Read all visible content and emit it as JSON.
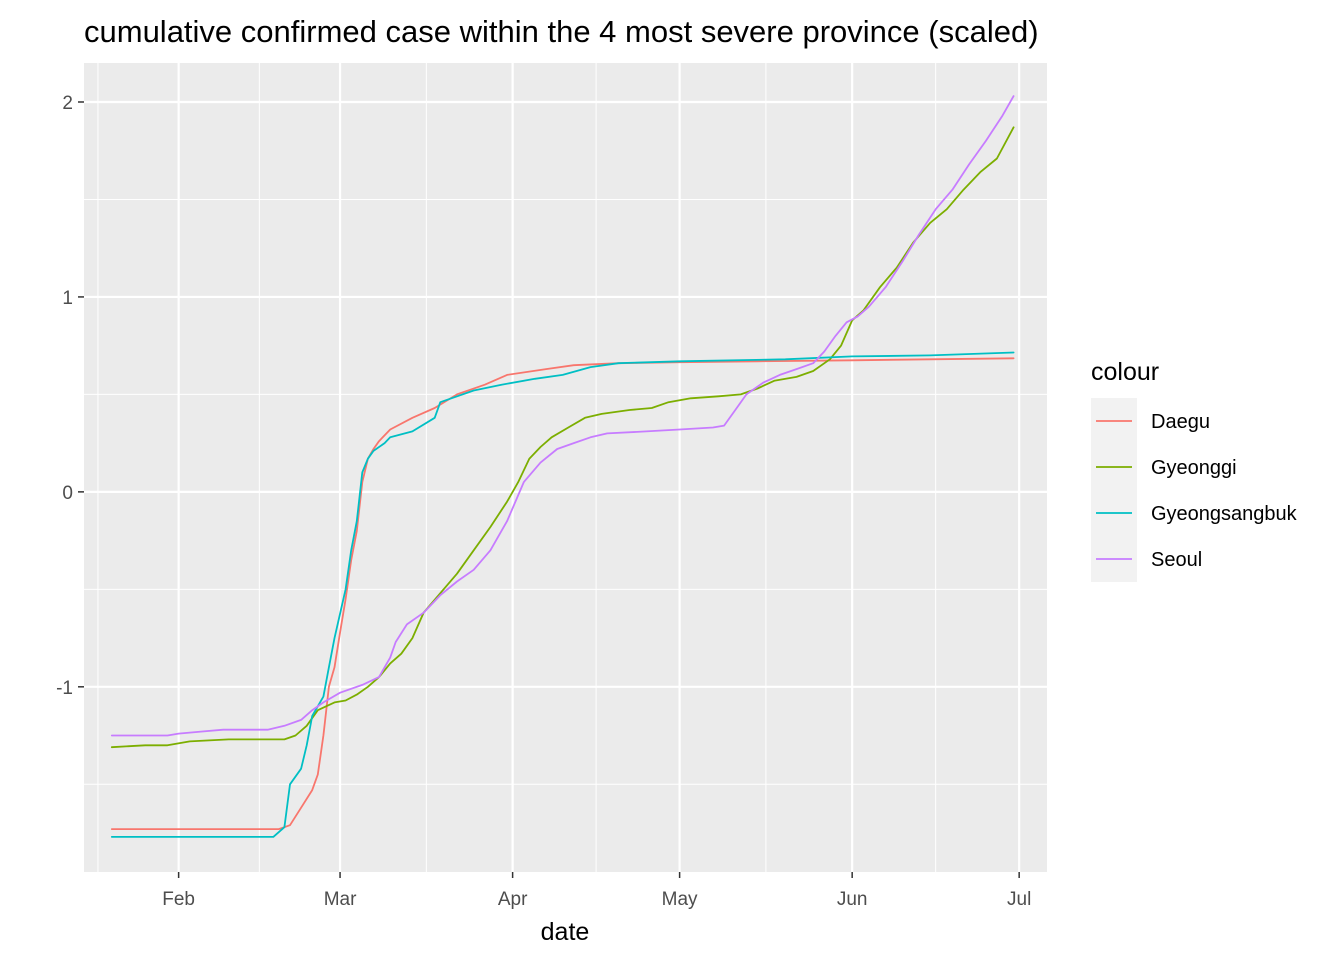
{
  "chart_data": {
    "type": "line",
    "title": "cumulative confirmed case within the 4 most severe province (scaled)",
    "xlabel": "date",
    "ylabel": "",
    "x_type": "date",
    "xlim": [
      "2020-01-15",
      "2020-07-06"
    ],
    "ylim": [
      -1.95,
      2.2
    ],
    "x_ticks": [
      {
        "date": "2020-02-01",
        "label": "Feb"
      },
      {
        "date": "2020-03-01",
        "label": "Mar"
      },
      {
        "date": "2020-04-01",
        "label": "Apr"
      },
      {
        "date": "2020-05-01",
        "label": "May"
      },
      {
        "date": "2020-06-01",
        "label": "Jun"
      },
      {
        "date": "2020-07-01",
        "label": "Jul"
      }
    ],
    "y_ticks": [
      {
        "value": -1,
        "label": "-1"
      },
      {
        "value": 0,
        "label": "0"
      },
      {
        "value": 1,
        "label": "1"
      },
      {
        "value": 2,
        "label": "2"
      }
    ],
    "y_minor": [
      -1.5,
      -0.5,
      0.5,
      1.5
    ],
    "grid": true,
    "legend": {
      "title": "colour",
      "position": "right"
    },
    "series": [
      {
        "name": "Daegu",
        "color": "#F8766D",
        "points": [
          [
            "2020-01-20",
            -1.73
          ],
          [
            "2020-02-19",
            -1.73
          ],
          [
            "2020-02-21",
            -1.71
          ],
          [
            "2020-02-23",
            -1.62
          ],
          [
            "2020-02-25",
            -1.53
          ],
          [
            "2020-02-26",
            -1.45
          ],
          [
            "2020-02-27",
            -1.25
          ],
          [
            "2020-02-28",
            -1.0
          ],
          [
            "2020-02-29",
            -0.9
          ],
          [
            "2020-03-01",
            -0.72
          ],
          [
            "2020-03-02",
            -0.55
          ],
          [
            "2020-03-03",
            -0.35
          ],
          [
            "2020-03-04",
            -0.2
          ],
          [
            "2020-03-05",
            0.05
          ],
          [
            "2020-03-06",
            0.17
          ],
          [
            "2020-03-07",
            0.22
          ],
          [
            "2020-03-08",
            0.26
          ],
          [
            "2020-03-10",
            0.32
          ],
          [
            "2020-03-14",
            0.38
          ],
          [
            "2020-03-18",
            0.43
          ],
          [
            "2020-03-22",
            0.5
          ],
          [
            "2020-03-27",
            0.55
          ],
          [
            "2020-03-31",
            0.6
          ],
          [
            "2020-04-07",
            0.63
          ],
          [
            "2020-04-12",
            0.65
          ],
          [
            "2020-04-20",
            0.66
          ],
          [
            "2020-05-01",
            0.665
          ],
          [
            "2020-05-15",
            0.67
          ],
          [
            "2020-06-01",
            0.675
          ],
          [
            "2020-06-15",
            0.68
          ],
          [
            "2020-06-30",
            0.685
          ]
        ]
      },
      {
        "name": "Gyeonggi",
        "color": "#7CAE00",
        "points": [
          [
            "2020-01-20",
            -1.31
          ],
          [
            "2020-01-26",
            -1.3
          ],
          [
            "2020-01-30",
            -1.3
          ],
          [
            "2020-02-03",
            -1.28
          ],
          [
            "2020-02-10",
            -1.27
          ],
          [
            "2020-02-20",
            -1.27
          ],
          [
            "2020-02-22",
            -1.25
          ],
          [
            "2020-02-24",
            -1.2
          ],
          [
            "2020-02-26",
            -1.12
          ],
          [
            "2020-02-29",
            -1.08
          ],
          [
            "2020-03-02",
            -1.07
          ],
          [
            "2020-03-04",
            -1.04
          ],
          [
            "2020-03-06",
            -1.0
          ],
          [
            "2020-03-08",
            -0.95
          ],
          [
            "2020-03-10",
            -0.88
          ],
          [
            "2020-03-12",
            -0.83
          ],
          [
            "2020-03-14",
            -0.75
          ],
          [
            "2020-03-16",
            -0.62
          ],
          [
            "2020-03-19",
            -0.52
          ],
          [
            "2020-03-22",
            -0.42
          ],
          [
            "2020-03-25",
            -0.3
          ],
          [
            "2020-03-28",
            -0.18
          ],
          [
            "2020-03-31",
            -0.05
          ],
          [
            "2020-04-02",
            0.05
          ],
          [
            "2020-04-04",
            0.17
          ],
          [
            "2020-04-06",
            0.23
          ],
          [
            "2020-04-08",
            0.28
          ],
          [
            "2020-04-11",
            0.33
          ],
          [
            "2020-04-14",
            0.38
          ],
          [
            "2020-04-17",
            0.4
          ],
          [
            "2020-04-22",
            0.42
          ],
          [
            "2020-04-26",
            0.43
          ],
          [
            "2020-04-29",
            0.46
          ],
          [
            "2020-05-03",
            0.48
          ],
          [
            "2020-05-08",
            0.49
          ],
          [
            "2020-05-12",
            0.5
          ],
          [
            "2020-05-15",
            0.53
          ],
          [
            "2020-05-18",
            0.57
          ],
          [
            "2020-05-22",
            0.59
          ],
          [
            "2020-05-25",
            0.62
          ],
          [
            "2020-05-28",
            0.68
          ],
          [
            "2020-05-30",
            0.75
          ],
          [
            "2020-06-01",
            0.88
          ],
          [
            "2020-06-03",
            0.93
          ],
          [
            "2020-06-06",
            1.05
          ],
          [
            "2020-06-09",
            1.15
          ],
          [
            "2020-06-12",
            1.28
          ],
          [
            "2020-06-15",
            1.38
          ],
          [
            "2020-06-18",
            1.45
          ],
          [
            "2020-06-21",
            1.55
          ],
          [
            "2020-06-24",
            1.64
          ],
          [
            "2020-06-27",
            1.71
          ],
          [
            "2020-06-30",
            1.87
          ]
        ]
      },
      {
        "name": "Gyeongsangbuk",
        "color": "#00BFC4",
        "points": [
          [
            "2020-01-20",
            -1.77
          ],
          [
            "2020-02-18",
            -1.77
          ],
          [
            "2020-02-20",
            -1.72
          ],
          [
            "2020-02-21",
            -1.5
          ],
          [
            "2020-02-23",
            -1.42
          ],
          [
            "2020-02-24",
            -1.3
          ],
          [
            "2020-02-25",
            -1.15
          ],
          [
            "2020-02-27",
            -1.05
          ],
          [
            "2020-02-28",
            -0.9
          ],
          [
            "2020-02-29",
            -0.75
          ],
          [
            "2020-03-02",
            -0.5
          ],
          [
            "2020-03-03",
            -0.3
          ],
          [
            "2020-03-04",
            -0.15
          ],
          [
            "2020-03-05",
            0.1
          ],
          [
            "2020-03-06",
            0.17
          ],
          [
            "2020-03-07",
            0.21
          ],
          [
            "2020-03-09",
            0.25
          ],
          [
            "2020-03-10",
            0.28
          ],
          [
            "2020-03-14",
            0.31
          ],
          [
            "2020-03-18",
            0.38
          ],
          [
            "2020-03-19",
            0.46
          ],
          [
            "2020-03-21",
            0.48
          ],
          [
            "2020-03-25",
            0.52
          ],
          [
            "2020-03-30",
            0.55
          ],
          [
            "2020-04-05",
            0.58
          ],
          [
            "2020-04-10",
            0.6
          ],
          [
            "2020-04-15",
            0.64
          ],
          [
            "2020-04-20",
            0.66
          ],
          [
            "2020-05-01",
            0.67
          ],
          [
            "2020-05-20",
            0.68
          ],
          [
            "2020-06-01",
            0.695
          ],
          [
            "2020-06-15",
            0.7
          ],
          [
            "2020-06-30",
            0.715
          ]
        ]
      },
      {
        "name": "Seoul",
        "color": "#C77CFF",
        "points": [
          [
            "2020-01-20",
            -1.25
          ],
          [
            "2020-01-30",
            -1.25
          ],
          [
            "2020-02-01",
            -1.24
          ],
          [
            "2020-02-05",
            -1.23
          ],
          [
            "2020-02-09",
            -1.22
          ],
          [
            "2020-02-17",
            -1.22
          ],
          [
            "2020-02-20",
            -1.2
          ],
          [
            "2020-02-23",
            -1.17
          ],
          [
            "2020-02-25",
            -1.12
          ],
          [
            "2020-02-27",
            -1.08
          ],
          [
            "2020-03-01",
            -1.03
          ],
          [
            "2020-03-05",
            -0.99
          ],
          [
            "2020-03-08",
            -0.95
          ],
          [
            "2020-03-10",
            -0.85
          ],
          [
            "2020-03-11",
            -0.77
          ],
          [
            "2020-03-13",
            -0.68
          ],
          [
            "2020-03-16",
            -0.62
          ],
          [
            "2020-03-19",
            -0.53
          ],
          [
            "2020-03-22",
            -0.46
          ],
          [
            "2020-03-25",
            -0.4
          ],
          [
            "2020-03-28",
            -0.3
          ],
          [
            "2020-03-31",
            -0.15
          ],
          [
            "2020-04-03",
            0.05
          ],
          [
            "2020-04-06",
            0.15
          ],
          [
            "2020-04-09",
            0.22
          ],
          [
            "2020-04-12",
            0.25
          ],
          [
            "2020-04-15",
            0.28
          ],
          [
            "2020-04-18",
            0.3
          ],
          [
            "2020-04-25",
            0.31
          ],
          [
            "2020-05-01",
            0.32
          ],
          [
            "2020-05-07",
            0.33
          ],
          [
            "2020-05-09",
            0.34
          ],
          [
            "2020-05-11",
            0.42
          ],
          [
            "2020-05-13",
            0.5
          ],
          [
            "2020-05-16",
            0.56
          ],
          [
            "2020-05-19",
            0.6
          ],
          [
            "2020-05-22",
            0.63
          ],
          [
            "2020-05-25",
            0.66
          ],
          [
            "2020-05-27",
            0.72
          ],
          [
            "2020-05-29",
            0.8
          ],
          [
            "2020-05-31",
            0.87
          ],
          [
            "2020-06-02",
            0.9
          ],
          [
            "2020-06-04",
            0.95
          ],
          [
            "2020-06-07",
            1.05
          ],
          [
            "2020-06-10",
            1.18
          ],
          [
            "2020-06-13",
            1.32
          ],
          [
            "2020-06-16",
            1.45
          ],
          [
            "2020-06-19",
            1.55
          ],
          [
            "2020-06-22",
            1.68
          ],
          [
            "2020-06-25",
            1.8
          ],
          [
            "2020-06-28",
            1.93
          ],
          [
            "2020-06-30",
            2.03
          ]
        ]
      }
    ]
  }
}
